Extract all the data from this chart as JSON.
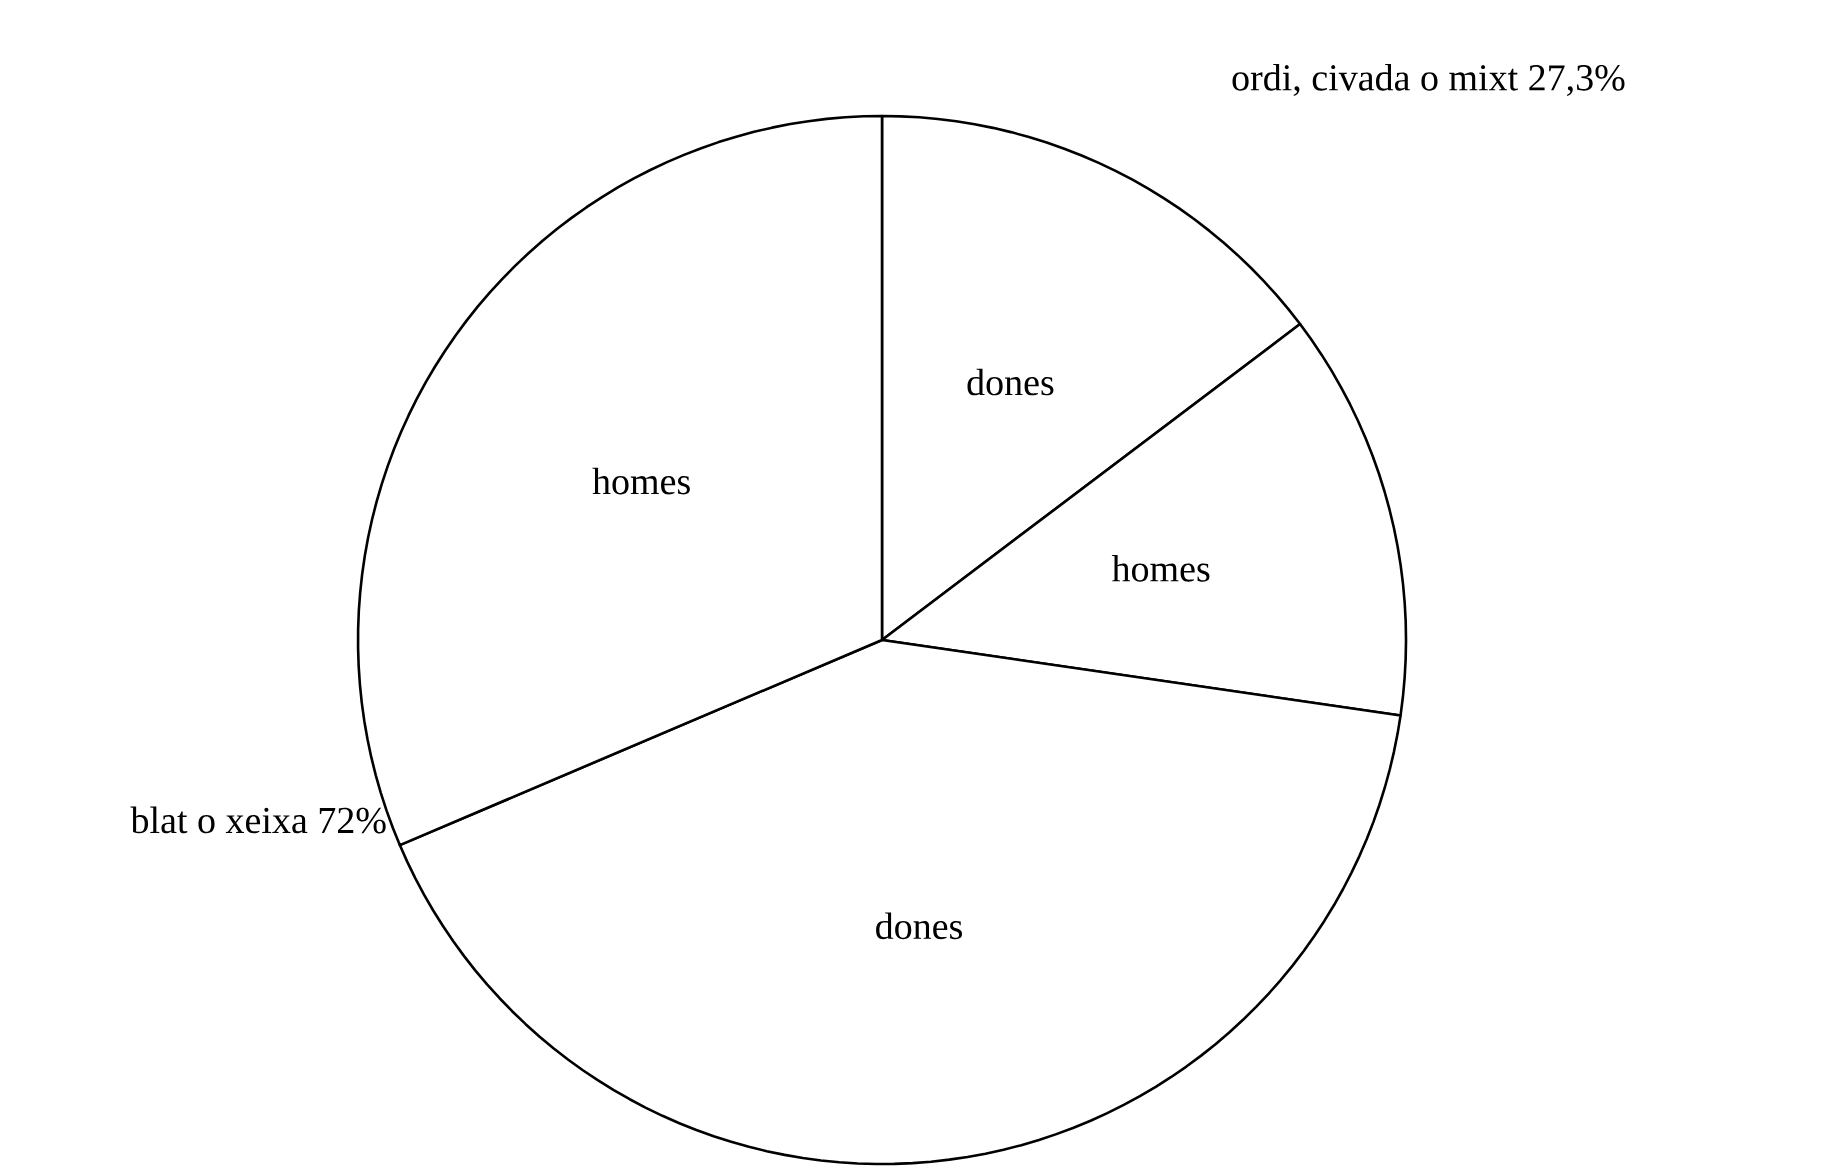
{
  "chart_data": {
    "type": "pie",
    "categories": [
      "dones",
      "homes",
      "dones",
      "homes"
    ],
    "values": [
      14.7,
      12.6,
      41.3,
      31.4
    ],
    "colors": [
      "#ffffff",
      "#ffffff",
      "#ffffff",
      "#ffffff"
    ],
    "annotations": [
      "ordi, civada o mixt 27,3%",
      "blat o xeixa 72%"
    ]
  }
}
